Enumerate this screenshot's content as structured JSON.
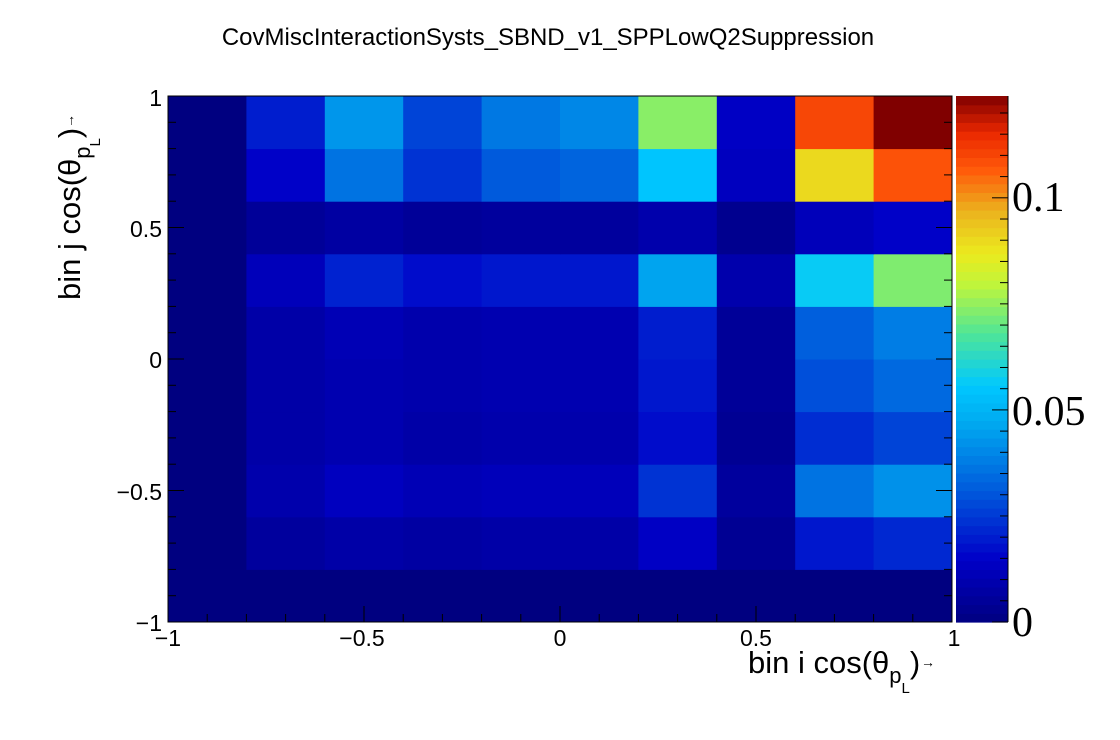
{
  "chart_data": {
    "type": "heatmap",
    "title": "CovMiscInteractionSysts_SBND_v1_SPPLowQ2Suppression",
    "xlabel": {
      "text": "bin i cos(θ",
      "sub": "p",
      "subsub": "L",
      "close": ")"
    },
    "ylabel": {
      "text": "bin j cos(θ",
      "sub": "p",
      "subsub": "L",
      "close": ")"
    },
    "x_edges": [
      -1,
      -0.8,
      -0.6,
      -0.4,
      -0.2,
      0,
      0.2,
      0.4,
      0.6,
      0.8,
      1
    ],
    "y_edges": [
      -1,
      -0.8,
      -0.6,
      -0.4,
      -0.2,
      0,
      0.2,
      0.4,
      0.6,
      0.8,
      1
    ],
    "xlim": [
      -1,
      1
    ],
    "ylim": [
      -1,
      1
    ],
    "x_tick_labels": [
      "−1",
      "−0.5",
      "0",
      "0.5",
      "1"
    ],
    "y_tick_labels": [
      "−1",
      "−0.5",
      "0",
      "0.5",
      "1"
    ],
    "zlim": [
      0,
      0.124
    ],
    "z_tick_labels": [
      "0",
      "0.05",
      "0.1"
    ],
    "colormap": "rainbow (ROOT kRainBow)",
    "values": [
      [
        0,
        0,
        0,
        0,
        0,
        0,
        0,
        0,
        0,
        0
      ],
      [
        0,
        0.006,
        0.008,
        0.007,
        0.008,
        0.008,
        0.014,
        0.004,
        0.019,
        0.022
      ],
      [
        0,
        0.009,
        0.013,
        0.011,
        0.012,
        0.012,
        0.024,
        0.006,
        0.036,
        0.042
      ],
      [
        0,
        0.008,
        0.01,
        0.008,
        0.009,
        0.009,
        0.017,
        0.004,
        0.023,
        0.027
      ],
      [
        0,
        0.008,
        0.01,
        0.009,
        0.01,
        0.01,
        0.019,
        0.005,
        0.029,
        0.034
      ],
      [
        0,
        0.008,
        0.011,
        0.009,
        0.01,
        0.01,
        0.02,
        0.005,
        0.032,
        0.038
      ],
      [
        0,
        0.012,
        0.021,
        0.017,
        0.019,
        0.019,
        0.046,
        0.009,
        0.057,
        0.073
      ],
      [
        0,
        0.005,
        0.007,
        0.005,
        0.006,
        0.006,
        0.009,
        0.003,
        0.012,
        0.015
      ],
      [
        0,
        0.015,
        0.036,
        0.024,
        0.031,
        0.033,
        0.055,
        0.013,
        0.09,
        0.108
      ],
      [
        0,
        0.02,
        0.043,
        0.027,
        0.037,
        0.04,
        0.074,
        0.014,
        0.11,
        0.124
      ]
    ],
    "grid": false,
    "legend": "colorbar-right"
  }
}
